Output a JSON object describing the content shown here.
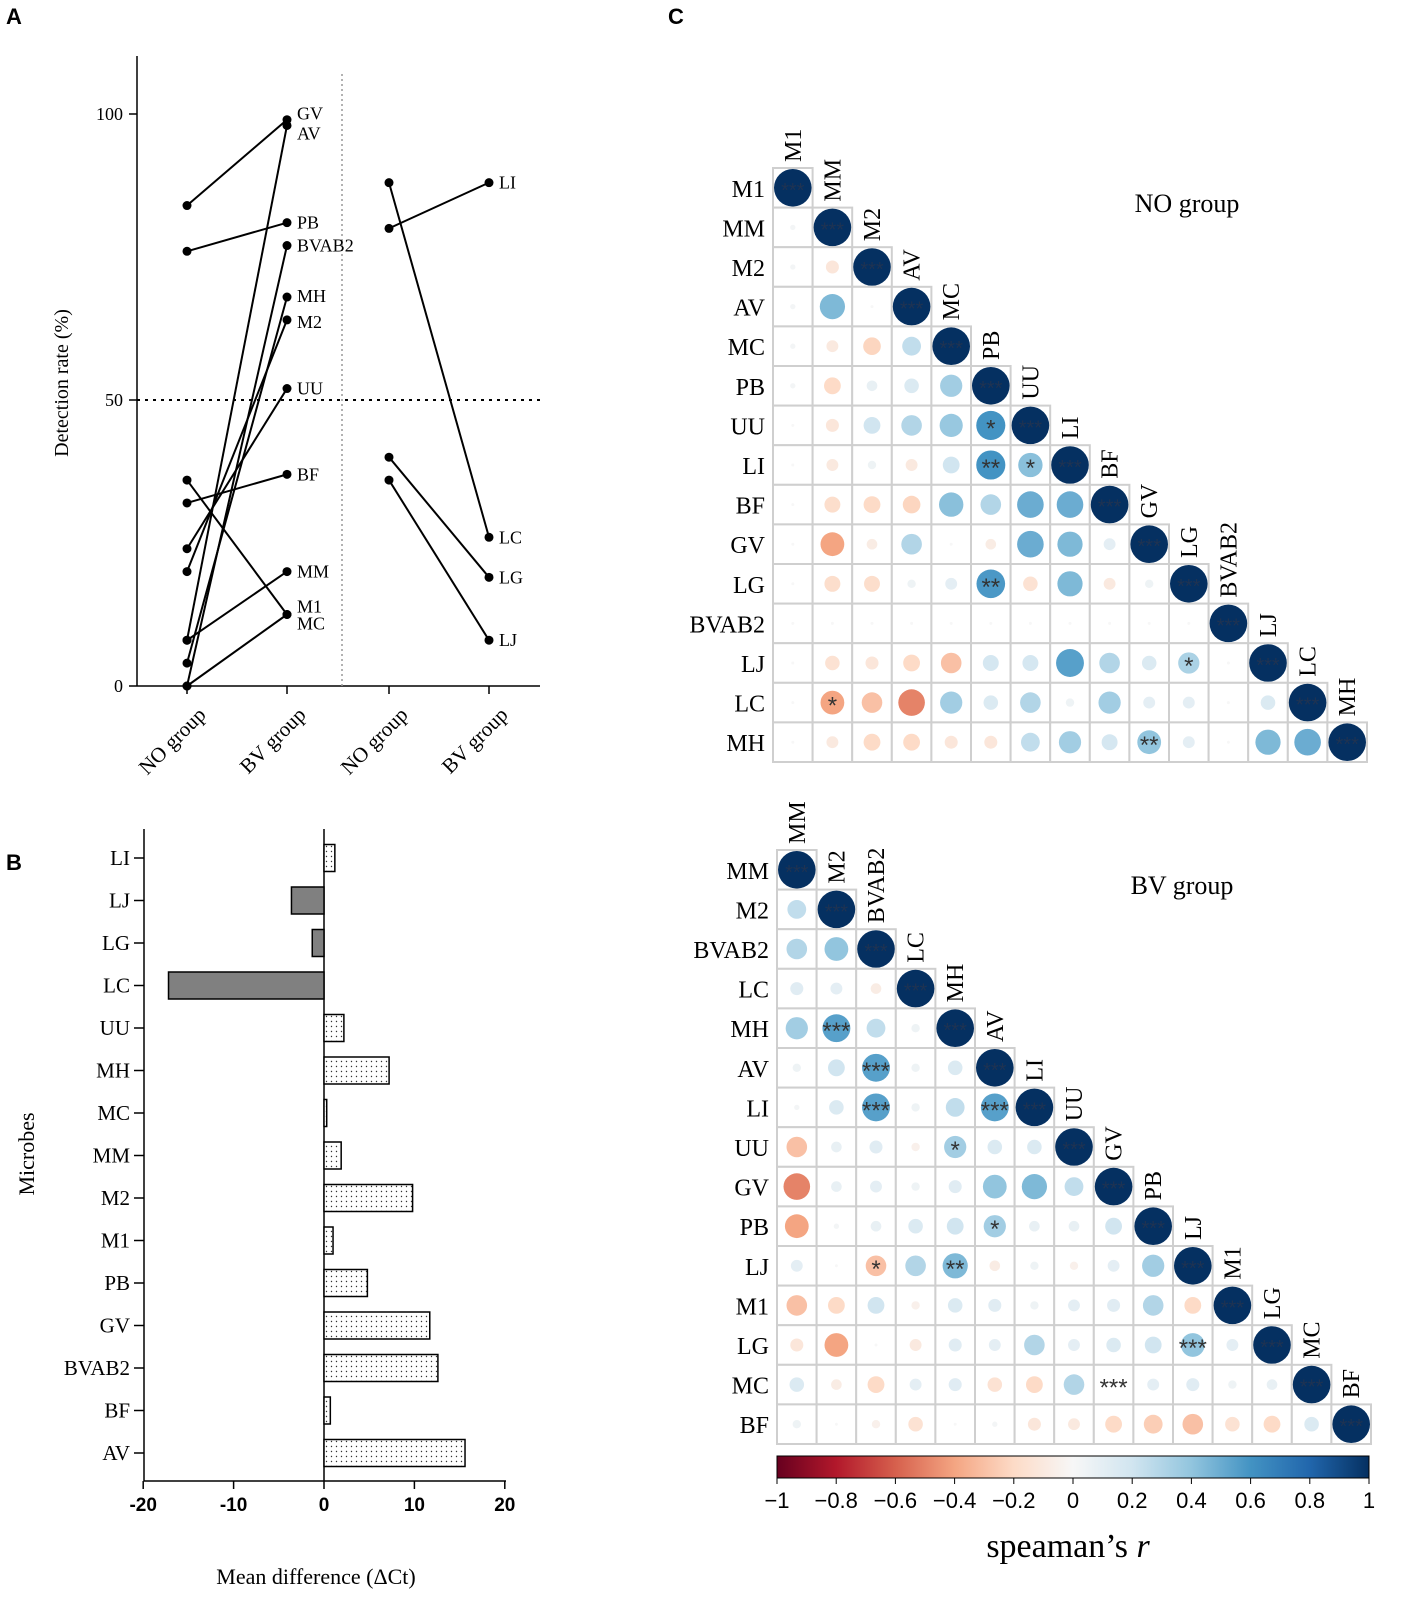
{
  "panels": {
    "a": "A",
    "b": "B",
    "c": "C"
  },
  "chart_data": [
    {
      "type": "line",
      "id": "A",
      "ylabel": "Detection rate (%)",
      "yticks": [
        0,
        50,
        100
      ],
      "ylim": [
        0,
        110
      ],
      "threshold": 50,
      "left_categories": [
        "NO group",
        "BV group"
      ],
      "right_categories": [
        "NO group",
        "BV group"
      ],
      "left_series": [
        {
          "name": "GV",
          "values": [
            84,
            99
          ]
        },
        {
          "name": "AV",
          "values": [
            8,
            98
          ]
        },
        {
          "name": "PB",
          "values": [
            76,
            81
          ]
        },
        {
          "name": "BVAB2",
          "values": [
            0,
            77
          ]
        },
        {
          "name": "MH",
          "values": [
            4,
            68
          ]
        },
        {
          "name": "M2",
          "values": [
            20,
            64
          ]
        },
        {
          "name": "UU",
          "values": [
            24,
            52
          ]
        },
        {
          "name": "BF",
          "values": [
            32,
            37
          ]
        },
        {
          "name": "MM",
          "values": [
            8,
            20
          ]
        },
        {
          "name": "M1",
          "values": [
            0,
            12.5
          ]
        },
        {
          "name": "MC",
          "values": [
            36,
            12.5
          ]
        }
      ],
      "right_series": [
        {
          "name": "LI",
          "values": [
            80,
            88
          ]
        },
        {
          "name": "LC",
          "values": [
            88,
            26
          ]
        },
        {
          "name": "LG",
          "values": [
            40,
            19
          ]
        },
        {
          "name": "LJ",
          "values": [
            36,
            8
          ]
        }
      ]
    },
    {
      "type": "bar",
      "id": "B",
      "orientation": "horizontal",
      "xlabel": "Mean difference (ΔCt)",
      "ylabel": "Microbes",
      "xlim": [
        -20,
        20
      ],
      "xticks": [
        "-20",
        "-10",
        "0",
        "10",
        "20"
      ],
      "categories": [
        "LI",
        "LJ",
        "LG",
        "LC",
        "UU",
        "MH",
        "MC",
        "MM",
        "M2",
        "M1",
        "PB",
        "GV",
        "BVAB2",
        "BF",
        "AV"
      ],
      "values": [
        1.2,
        -3.6,
        -1.3,
        -17.2,
        2.2,
        7.2,
        0.3,
        1.9,
        9.8,
        1.0,
        4.8,
        11.7,
        12.6,
        0.7,
        15.6
      ]
    },
    {
      "type": "heatmap",
      "id": "C-NO",
      "title": "NO group",
      "labels": [
        "M1",
        "MM",
        "M2",
        "AV",
        "MC",
        "PB",
        "UU",
        "LI",
        "BF",
        "GV",
        "LG",
        "BVAB2",
        "LJ",
        "LC",
        "MH"
      ],
      "rows": [
        [
          1
        ],
        [
          0.02,
          1
        ],
        [
          0.02,
          -0.12,
          1
        ],
        [
          0.02,
          0.45,
          0,
          1
        ],
        [
          0.02,
          -0.1,
          -0.22,
          0.25,
          1
        ],
        [
          0.02,
          -0.2,
          0.08,
          0.15,
          0.35,
          1
        ],
        [
          0,
          -0.12,
          0.2,
          0.3,
          0.38,
          0.6,
          1
        ],
        [
          0,
          -0.1,
          0.05,
          -0.1,
          0.2,
          0.6,
          0.42,
          1
        ],
        [
          0,
          -0.18,
          -0.2,
          -0.22,
          0.42,
          0.3,
          0.5,
          0.5,
          1
        ],
        [
          0,
          -0.4,
          -0.08,
          0.3,
          0,
          -0.08,
          0.5,
          0.45,
          0.1,
          1
        ],
        [
          0,
          -0.18,
          -0.18,
          0.05,
          0.1,
          0.58,
          -0.15,
          0.45,
          -0.1,
          0.05,
          1
        ],
        [
          0,
          0,
          0,
          0,
          0,
          0,
          0,
          0,
          0,
          0,
          0,
          1
        ],
        [
          0,
          -0.15,
          -0.12,
          -0.2,
          -0.3,
          0.18,
          0.18,
          0.55,
          0.3,
          0.15,
          0.32,
          0,
          1
        ],
        [
          0,
          -0.4,
          -0.3,
          -0.5,
          0.35,
          0.15,
          0.3,
          0.05,
          0.35,
          0.1,
          0.1,
          0,
          0.15,
          1
        ],
        [
          0,
          -0.1,
          -0.2,
          -0.2,
          -0.12,
          -0.12,
          0.25,
          0.35,
          0.18,
          0.4,
          0.1,
          0,
          0.45,
          0.5,
          1
        ]
      ],
      "stars": [
        {
          "row": 6,
          "col": 5,
          "text": "*"
        },
        {
          "row": 7,
          "col": 5,
          "text": "**"
        },
        {
          "row": 7,
          "col": 6,
          "text": "*"
        },
        {
          "row": 10,
          "col": 5,
          "text": "**"
        },
        {
          "row": 12,
          "col": 10,
          "text": "*"
        },
        {
          "row": 13,
          "col": 1,
          "text": "*"
        },
        {
          "row": 14,
          "col": 9,
          "text": "**"
        }
      ],
      "diagonal_stars": "***"
    },
    {
      "type": "heatmap",
      "id": "C-BV",
      "title": "BV group",
      "labels": [
        "MM",
        "M2",
        "BVAB2",
        "LC",
        "MH",
        "AV",
        "LI",
        "UU",
        "GV",
        "PB",
        "LJ",
        "M1",
        "LG",
        "MC",
        "BF"
      ],
      "rows": [
        [
          1
        ],
        [
          0.25,
          1
        ],
        [
          0.3,
          0.4,
          1
        ],
        [
          0.12,
          0.1,
          -0.08,
          1
        ],
        [
          0.35,
          0.55,
          0.25,
          0.05,
          1
        ],
        [
          0.05,
          0.2,
          0.55,
          0.05,
          0.15,
          1
        ],
        [
          0.02,
          0.15,
          0.55,
          0.05,
          0.25,
          0.55,
          1
        ],
        [
          -0.3,
          0.08,
          0.12,
          -0.05,
          0.35,
          0.15,
          0.15,
          1
        ],
        [
          -0.5,
          0.08,
          0.1,
          0.05,
          0.12,
          0.4,
          0.45,
          0.25,
          1
        ],
        [
          -0.4,
          0.02,
          0.08,
          0.15,
          0.2,
          0.35,
          0.08,
          0.08,
          0.2,
          1
        ],
        [
          0.1,
          0,
          -0.3,
          0.3,
          0.45,
          -0.08,
          0.05,
          -0.05,
          0.1,
          0.35,
          1
        ],
        [
          -0.3,
          -0.2,
          0.2,
          -0.05,
          0.15,
          0.12,
          0.05,
          0.1,
          0.12,
          0.3,
          -0.2,
          1
        ],
        [
          -0.12,
          -0.4,
          0,
          -0.1,
          0.12,
          0.1,
          0.3,
          0.1,
          0.15,
          0.2,
          0.4,
          0.1,
          1
        ],
        [
          0.15,
          -0.08,
          -0.2,
          0.1,
          0.12,
          -0.15,
          -0.2,
          0.3,
          0,
          0.1,
          0.12,
          0.05,
          0.08,
          1
        ],
        [
          0.05,
          0,
          -0.05,
          -0.15,
          0,
          0.02,
          -0.12,
          -0.1,
          -0.2,
          -0.25,
          -0.3,
          -0.15,
          -0.2,
          0.15,
          1
        ]
      ],
      "stars": [
        {
          "row": 4,
          "col": 1,
          "text": "***"
        },
        {
          "row": 5,
          "col": 2,
          "text": "***"
        },
        {
          "row": 6,
          "col": 2,
          "text": "***"
        },
        {
          "row": 6,
          "col": 5,
          "text": "***"
        },
        {
          "row": 7,
          "col": 4,
          "text": "*"
        },
        {
          "row": 9,
          "col": 5,
          "text": "*"
        },
        {
          "row": 10,
          "col": 2,
          "text": "*"
        },
        {
          "row": 10,
          "col": 4,
          "text": "**"
        },
        {
          "row": 12,
          "col": 10,
          "text": "***"
        },
        {
          "row": 13,
          "col": 8,
          "text": "***"
        }
      ],
      "diagonal_stars": "***"
    }
  ],
  "colorbar": {
    "label_prefix": "speaman’s ",
    "label_var": "r",
    "ticks": [
      "−1",
      "−0.8",
      "−0.6",
      "−0.4",
      "−0.2",
      "0",
      "0.2",
      "0.4",
      "0.6",
      "0.8",
      "1"
    ],
    "colors": [
      "#67001f",
      "#b2182b",
      "#d6604d",
      "#f4a582",
      "#fddbc7",
      "#f7f7f7",
      "#d1e5f0",
      "#92c5de",
      "#4393c3",
      "#2166ac",
      "#053061"
    ]
  }
}
